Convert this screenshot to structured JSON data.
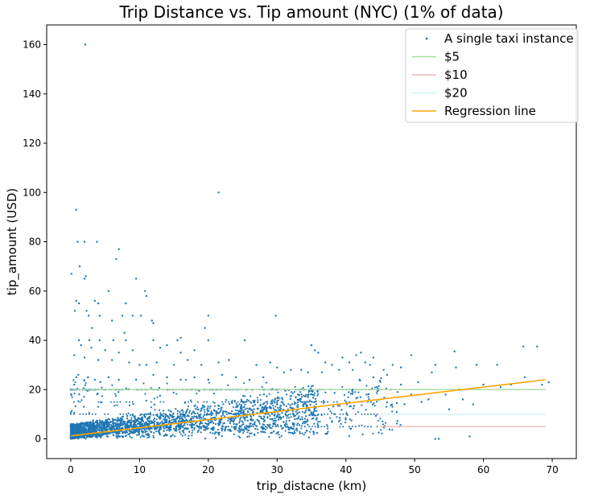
{
  "chart_data": {
    "type": "scatter",
    "title": "Trip Distance vs. Tip amount (NYC) (1% of data)",
    "xlabel": "trip_distacne (km)",
    "ylabel": "tip_amount (USD)",
    "xlim": [
      -3.5,
      73.5
    ],
    "ylim": [
      -8,
      168
    ],
    "xticks": [
      0,
      10,
      20,
      30,
      40,
      50,
      60,
      70
    ],
    "yticks": [
      0,
      20,
      40,
      60,
      80,
      100,
      120,
      140,
      160
    ],
    "grid": false,
    "legend": {
      "position": "top-right",
      "entries": [
        {
          "label": "A single taxi instance",
          "color": "#1f77b4",
          "kind": "marker"
        },
        {
          "label": "$5",
          "color": "#a6dba0",
          "kind": "line"
        },
        {
          "label": "$10",
          "color": "#f4b4b4",
          "kind": "line"
        },
        {
          "label": "$20",
          "color": "#c6f4f4",
          "kind": "line"
        },
        {
          "label": "Regression line",
          "color": "#ffa500",
          "kind": "line"
        }
      ]
    },
    "reference_lines": [
      {
        "label": "$5",
        "y": 20,
        "x": [
          0,
          69
        ],
        "color": "#a6dba0"
      },
      {
        "label": "$10",
        "y": 5,
        "x": [
          45,
          69
        ],
        "color": "#f4b4b4"
      },
      {
        "label": "$20",
        "y": 10,
        "x": [
          45,
          69
        ],
        "color": "#c6f4f4"
      }
    ],
    "regression": {
      "label": "Regression line",
      "x": [
        0,
        69
      ],
      "y": [
        1.2,
        24
      ],
      "color": "#ffa500"
    },
    "series": [
      {
        "name": "A single taxi instance",
        "color": "#1f77b4",
        "points": [
          [
            2.1,
            160
          ],
          [
            21.5,
            100
          ],
          [
            0.8,
            93
          ],
          [
            1.0,
            80
          ],
          [
            2.0,
            80
          ],
          [
            3.8,
            80
          ],
          [
            7.0,
            77
          ],
          [
            6.6,
            73
          ],
          [
            1.3,
            70
          ],
          [
            0.1,
            67
          ],
          [
            2.2,
            66
          ],
          [
            2.0,
            65
          ],
          [
            9.5,
            65
          ],
          [
            5.5,
            60
          ],
          [
            10.8,
            60
          ],
          [
            11.0,
            58
          ],
          [
            0.8,
            56
          ],
          [
            1.2,
            55
          ],
          [
            3.5,
            56
          ],
          [
            4.0,
            55
          ],
          [
            8.0,
            55
          ],
          [
            0.6,
            52
          ],
          [
            2.3,
            52
          ],
          [
            2.6,
            50
          ],
          [
            4.2,
            50
          ],
          [
            7.5,
            50
          ],
          [
            9.0,
            50
          ],
          [
            10.2,
            50
          ],
          [
            11.8,
            48
          ],
          [
            20.0,
            50
          ],
          [
            29.8,
            50
          ],
          [
            6.0,
            48
          ],
          [
            12.0,
            47
          ],
          [
            3.1,
            45
          ],
          [
            19.5,
            45
          ],
          [
            7.8,
            43
          ],
          [
            1.2,
            40
          ],
          [
            2.7,
            40
          ],
          [
            4.2,
            40
          ],
          [
            6.2,
            40
          ],
          [
            8.0,
            40
          ],
          [
            12.0,
            40
          ],
          [
            15.5,
            40
          ],
          [
            16.0,
            41
          ],
          [
            20.0,
            40
          ],
          [
            25.3,
            40
          ],
          [
            1.5,
            38
          ],
          [
            3.0,
            37
          ],
          [
            5.0,
            36
          ],
          [
            7.0,
            35
          ],
          [
            9.0,
            36
          ],
          [
            13.0,
            37
          ],
          [
            14.0,
            38
          ],
          [
            16.0,
            35
          ],
          [
            18.0,
            36
          ],
          [
            0.5,
            34
          ],
          [
            2.0,
            33
          ],
          [
            4.0,
            32
          ],
          [
            6.0,
            32
          ],
          [
            8.5,
            31
          ],
          [
            10.0,
            30
          ],
          [
            11.0,
            30
          ],
          [
            12.5,
            31
          ],
          [
            15.0,
            30
          ],
          [
            17.0,
            32
          ],
          [
            19.0,
            30
          ],
          [
            21.5,
            31
          ],
          [
            23.0,
            32
          ],
          [
            27.0,
            30
          ],
          [
            29.0,
            31
          ],
          [
            35.0,
            38
          ],
          [
            35.5,
            36
          ],
          [
            36.0,
            35
          ],
          [
            37.0,
            31
          ],
          [
            38.0,
            30
          ],
          [
            39.5,
            33
          ],
          [
            40.5,
            31
          ],
          [
            41.5,
            34
          ],
          [
            42.2,
            35
          ],
          [
            42.8,
            31
          ],
          [
            43.5,
            30
          ],
          [
            44.0,
            33
          ],
          [
            55.8,
            35.5
          ],
          [
            49.5,
            34
          ],
          [
            65.8,
            37.5
          ],
          [
            67.8,
            37.5
          ],
          [
            62.0,
            30
          ],
          [
            59.0,
            30
          ],
          [
            56.0,
            29
          ],
          [
            53.0,
            30
          ],
          [
            52.5,
            27
          ],
          [
            45.5,
            28
          ],
          [
            46.8,
            30
          ],
          [
            48.0,
            29
          ],
          [
            41.0,
            28
          ],
          [
            39.0,
            28
          ],
          [
            36.5,
            27
          ],
          [
            34.5,
            27
          ],
          [
            33.5,
            28
          ],
          [
            31.0,
            27
          ],
          [
            32.0,
            28
          ],
          [
            30.0,
            29
          ],
          [
            0.8,
            25
          ],
          [
            0.5,
            22
          ],
          [
            1.1,
            26
          ],
          [
            2.5,
            25
          ],
          [
            3.5,
            24
          ],
          [
            5.5,
            25
          ],
          [
            7.0,
            24
          ],
          [
            9.5,
            24
          ],
          [
            12.0,
            26
          ],
          [
            14.0,
            25
          ],
          [
            16.0,
            24
          ],
          [
            18.0,
            25
          ],
          [
            20.0,
            24
          ],
          [
            22.0,
            26
          ],
          [
            24.0,
            25
          ],
          [
            26.0,
            24
          ],
          [
            28.0,
            25
          ],
          [
            41.0,
            20
          ],
          [
            43.0,
            18
          ],
          [
            44.5,
            21
          ],
          [
            47.5,
            19
          ],
          [
            48.5,
            14
          ],
          [
            49.5,
            18
          ],
          [
            51.0,
            15
          ],
          [
            52.0,
            16
          ],
          [
            54.5,
            18
          ],
          [
            55.0,
            12
          ],
          [
            57.0,
            16
          ],
          [
            58.5,
            14
          ],
          [
            58.0,
            1
          ],
          [
            53.0,
            0
          ],
          [
            53.5,
            0
          ],
          [
            60.0,
            22
          ],
          [
            62.5,
            21
          ],
          [
            64.0,
            22
          ],
          [
            66.0,
            25
          ],
          [
            68.5,
            22
          ],
          [
            69.5,
            23
          ],
          [
            56.5,
            20
          ],
          [
            48.0,
            22
          ],
          [
            50.5,
            23
          ],
          [
            46.0,
            26
          ],
          [
            44.0,
            25
          ],
          [
            42.0,
            24
          ]
        ]
      }
    ]
  }
}
